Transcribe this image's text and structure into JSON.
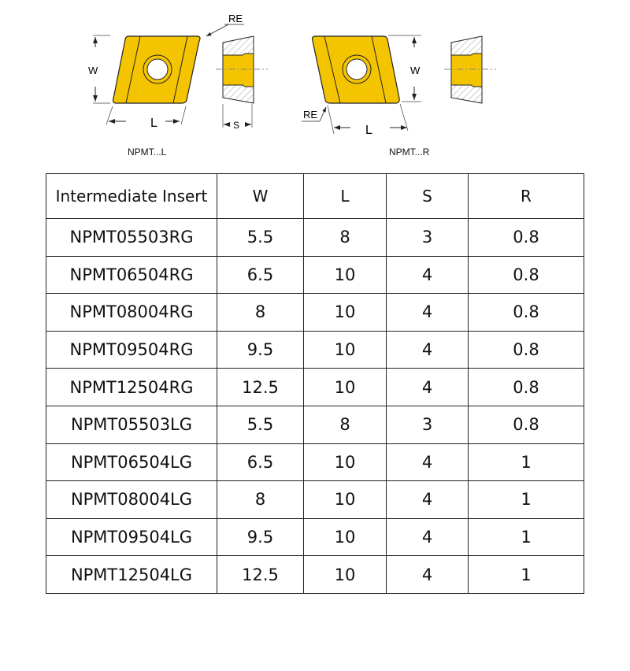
{
  "diagrams": [
    {
      "caption": "NPMT...L",
      "labels": {
        "re": "RE",
        "w": "W",
        "l": "L",
        "s": "S"
      }
    },
    {
      "caption": "NPMT...R",
      "labels": {
        "re": "RE",
        "w": "W",
        "l": "L"
      }
    }
  ],
  "colors": {
    "insert": "#F5C400",
    "outline": "#222222"
  },
  "table": {
    "headers": [
      "Intermediate Insert",
      "W",
      "L",
      "S",
      "R"
    ],
    "rows": [
      [
        "NPMT05503RG",
        "5.5",
        "8",
        "3",
        "0.8"
      ],
      [
        "NPMT06504RG",
        "6.5",
        "10",
        "4",
        "0.8"
      ],
      [
        "NPMT08004RG",
        "8",
        "10",
        "4",
        "0.8"
      ],
      [
        "NPMT09504RG",
        "9.5",
        "10",
        "4",
        "0.8"
      ],
      [
        "NPMT12504RG",
        "12.5",
        "10",
        "4",
        "0.8"
      ],
      [
        "NPMT05503LG",
        "5.5",
        "8",
        "3",
        "0.8"
      ],
      [
        "NPMT06504LG",
        "6.5",
        "10",
        "4",
        "1"
      ],
      [
        "NPMT08004LG",
        "8",
        "10",
        "4",
        "1"
      ],
      [
        "NPMT09504LG",
        "9.5",
        "10",
        "4",
        "1"
      ],
      [
        "NPMT12504LG",
        "12.5",
        "10",
        "4",
        "1"
      ]
    ]
  }
}
